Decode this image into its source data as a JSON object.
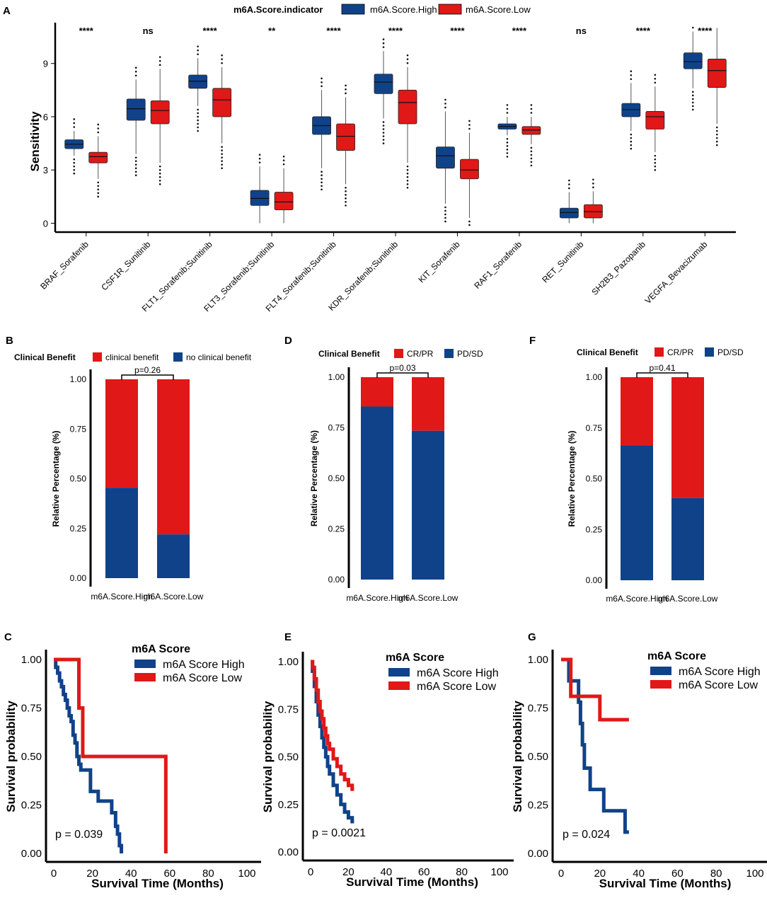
{
  "colors": {
    "high": "#10428a",
    "low": "#e01818",
    "axis": "#000000"
  },
  "chart_data": [
    {
      "panel": "A",
      "type": "box",
      "legend_title": "m6A.Score.indicator",
      "legend": [
        "m6A.Score.High",
        "m6A.Score.Low"
      ],
      "ylabel": "Sensitivity",
      "yticks": [
        0,
        3,
        6,
        9
      ],
      "ylim": [
        -0.5,
        11.3
      ],
      "categories": [
        "BRAF_Sorafenib",
        "CSF1R_Sunitinib",
        "FLT1_Sorafenib;Sunitinib",
        "FLT3_Sorafenib;Sunitinib",
        "FLT4_Sorafenib;Sunitinib",
        "KDR_Sorafenib;Sunitinib",
        "KIT_Sorafenib",
        "RAF1_Sorafenib",
        "RET_Sunitinib",
        "SH2B3_Pazopanib",
        "VEGFA_Bevacizumab"
      ],
      "significance": [
        "****",
        "ns",
        "****",
        "**",
        "****",
        "****",
        "****",
        "****",
        "ns",
        "****",
        "****"
      ],
      "series": [
        {
          "name": "m6A.Score.High",
          "boxes": [
            [
              3.8,
              4.2,
              4.45,
              4.7,
              5.2
            ],
            [
              3.9,
              5.8,
              6.45,
              7.0,
              8.1
            ],
            [
              6.6,
              7.6,
              8.0,
              8.35,
              9.3
            ],
            [
              0.0,
              1.0,
              1.4,
              1.85,
              3.2
            ],
            [
              3.1,
              5.0,
              5.5,
              6.0,
              7.5
            ],
            [
              5.9,
              7.3,
              7.95,
              8.4,
              9.7
            ],
            [
              1.1,
              3.1,
              3.8,
              4.3,
              6.3
            ],
            [
              4.95,
              5.3,
              5.45,
              5.6,
              6.0
            ],
            [
              0.0,
              0.3,
              0.6,
              0.85,
              1.75
            ],
            [
              5.2,
              6.0,
              6.4,
              6.75,
              7.9
            ],
            [
              7.6,
              8.7,
              9.1,
              9.6,
              10.8
            ]
          ]
        },
        {
          "name": "m6A.Score.Low",
          "boxes": [
            [
              2.5,
              3.4,
              3.75,
              4.0,
              4.9
            ],
            [
              3.4,
              5.6,
              6.35,
              6.9,
              8.7
            ],
            [
              4.5,
              6.0,
              6.95,
              7.6,
              8.8
            ],
            [
              0.0,
              0.75,
              1.2,
              1.75,
              3.1
            ],
            [
              2.2,
              4.1,
              4.9,
              5.6,
              7.1
            ],
            [
              3.4,
              5.6,
              6.8,
              7.5,
              8.8
            ],
            [
              0.3,
              2.5,
              3.0,
              3.6,
              5.1
            ],
            [
              4.45,
              5.0,
              5.25,
              5.45,
              6.0
            ],
            [
              0.0,
              0.3,
              0.65,
              1.05,
              1.8
            ],
            [
              4.0,
              5.3,
              6.0,
              6.3,
              7.7
            ],
            [
              5.6,
              7.65,
              8.6,
              9.25,
              11.0
            ]
          ]
        }
      ]
    },
    {
      "panel": "B",
      "type": "stacked_bar",
      "legend_title": "Clinical Benefit",
      "legend": [
        "clinical benefit",
        "no clinical benefit"
      ],
      "ylabel": "Relative Percentage (%)",
      "yticks": [
        "0.00",
        "0.25",
        "0.50",
        "0.75",
        "1.00"
      ],
      "categories": [
        "m6A.Score.High",
        "m6A.Score.Low"
      ],
      "bottom_values": [
        0.455,
        0.22
      ],
      "pvalue": "p=0.26"
    },
    {
      "panel": "D",
      "type": "stacked_bar",
      "legend_title": "Clinical Benefit",
      "legend": [
        "CR/PR",
        "PD/SD"
      ],
      "ylabel": "Relative Percentage (%)",
      "yticks": [
        "0.00",
        "0.25",
        "0.50",
        "0.75",
        "1.00"
      ],
      "categories": [
        "m6A.Score.High",
        "m6A.Score.Low"
      ],
      "bottom_values": [
        0.855,
        0.735
      ],
      "pvalue": "p=0.03"
    },
    {
      "panel": "F",
      "type": "stacked_bar",
      "legend_title": "Clinical Benefit",
      "legend": [
        "CR/PR",
        "PD/SD"
      ],
      "ylabel": "Relative Percentage (%)",
      "yticks": [
        "0.00",
        "0.25",
        "0.50",
        "0.75",
        "1.00"
      ],
      "categories": [
        "m6A.Score.High",
        "m6A.Score.Low"
      ],
      "bottom_values": [
        0.665,
        0.405
      ],
      "pvalue": "p=0.41"
    },
    {
      "panel": "C",
      "type": "km",
      "legend_title": "m6A Score",
      "legend": [
        "m6A Score High",
        "m6A Score Low"
      ],
      "xlabel": "Survival Time (Months)",
      "ylabel": "Survival probability",
      "xticks": [
        0,
        20,
        40,
        60,
        80,
        100
      ],
      "yticks": [
        "0.00",
        "0.25",
        "0.50",
        "0.75",
        "1.00"
      ],
      "pvalue": "p = 0.039",
      "series": [
        {
          "name": "m6A Score High",
          "points": [
            [
              0,
              1.0
            ],
            [
              1,
              0.96
            ],
            [
              2,
              0.93
            ],
            [
              3,
              0.89
            ],
            [
              4,
              0.86
            ],
            [
              5,
              0.82
            ],
            [
              6,
              0.79
            ],
            [
              7,
              0.75
            ],
            [
              8,
              0.71
            ],
            [
              9,
              0.68
            ],
            [
              10,
              0.61
            ],
            [
              11,
              0.57
            ],
            [
              12,
              0.5
            ],
            [
              13,
              0.46
            ],
            [
              14,
              0.43
            ],
            [
              15,
              0.43
            ],
            [
              18,
              0.43
            ],
            [
              19,
              0.32
            ],
            [
              22,
              0.32
            ],
            [
              23,
              0.27
            ],
            [
              28,
              0.27
            ],
            [
              30,
              0.21
            ],
            [
              32,
              0.14
            ],
            [
              33,
              0.1
            ],
            [
              34,
              0.04
            ],
            [
              35,
              0.0
            ]
          ]
        },
        {
          "name": "m6A Score Low",
          "points": [
            [
              0,
              1.0
            ],
            [
              13,
              1.0
            ],
            [
              13,
              0.75
            ],
            [
              14,
              0.75
            ],
            [
              15,
              0.5
            ],
            [
              58,
              0.5
            ],
            [
              58,
              0.0
            ]
          ]
        }
      ]
    },
    {
      "panel": "E",
      "type": "km",
      "legend_title": "m6A Score",
      "legend": [
        "m6A Score High",
        "m6A Score Low"
      ],
      "xlabel": "Survival Time (Months)",
      "ylabel": "Survival probability",
      "xticks": [
        0,
        20,
        40,
        60,
        80,
        100
      ],
      "yticks": [
        "0.00",
        "0.25",
        "0.50",
        "0.75",
        "1.00"
      ],
      "pvalue": "p = 0.0021",
      "series": [
        {
          "name": "m6A Score High",
          "points": [
            [
              0,
              1.0
            ],
            [
              1,
              0.95
            ],
            [
              2,
              0.87
            ],
            [
              3,
              0.79
            ],
            [
              4,
              0.72
            ],
            [
              5,
              0.66
            ],
            [
              6,
              0.6
            ],
            [
              7,
              0.55
            ],
            [
              8,
              0.5
            ],
            [
              9,
              0.45
            ],
            [
              10,
              0.41
            ],
            [
              12,
              0.35
            ],
            [
              14,
              0.3
            ],
            [
              16,
              0.25
            ],
            [
              18,
              0.21
            ],
            [
              20,
              0.18
            ],
            [
              22,
              0.16
            ],
            [
              23,
              0.16
            ]
          ]
        },
        {
          "name": "m6A Score Low",
          "points": [
            [
              0,
              1.0
            ],
            [
              1,
              0.97
            ],
            [
              2,
              0.91
            ],
            [
              3,
              0.85
            ],
            [
              4,
              0.79
            ],
            [
              5,
              0.74
            ],
            [
              6,
              0.7
            ],
            [
              7,
              0.65
            ],
            [
              8,
              0.61
            ],
            [
              9,
              0.57
            ],
            [
              10,
              0.54
            ],
            [
              12,
              0.49
            ],
            [
              14,
              0.45
            ],
            [
              16,
              0.41
            ],
            [
              18,
              0.38
            ],
            [
              20,
              0.35
            ],
            [
              22,
              0.33
            ],
            [
              23,
              0.33
            ]
          ]
        }
      ]
    },
    {
      "panel": "G",
      "type": "km",
      "legend_title": "m6A Score",
      "legend": [
        "m6A Score High",
        "m6A Score Low"
      ],
      "xlabel": "Survival Time (Months)",
      "ylabel": "Survival probability",
      "xticks": [
        0,
        20,
        40,
        60,
        80,
        100
      ],
      "yticks": [
        "0.00",
        "0.25",
        "0.50",
        "0.75",
        "1.00"
      ],
      "pvalue": "p = 0.024",
      "series": [
        {
          "name": "m6A Score High",
          "points": [
            [
              0,
              1.0
            ],
            [
              4,
              1.0
            ],
            [
              4,
              0.89
            ],
            [
              9,
              0.89
            ],
            [
              9,
              0.78
            ],
            [
              10,
              0.78
            ],
            [
              10,
              0.67
            ],
            [
              11,
              0.67
            ],
            [
              11,
              0.56
            ],
            [
              12,
              0.56
            ],
            [
              12,
              0.44
            ],
            [
              15,
              0.44
            ],
            [
              15,
              0.33
            ],
            [
              22,
              0.33
            ],
            [
              22,
              0.22
            ],
            [
              33,
              0.22
            ],
            [
              33,
              0.11
            ],
            [
              35,
              0.11
            ]
          ]
        },
        {
          "name": "m6A Score Low",
          "points": [
            [
              0,
              1.0
            ],
            [
              5,
              1.0
            ],
            [
              5,
              0.81
            ],
            [
              20,
              0.81
            ],
            [
              20,
              0.69
            ],
            [
              35,
              0.69
            ]
          ]
        }
      ]
    }
  ],
  "panel_labels": [
    "A",
    "B",
    "D",
    "F",
    "C",
    "E",
    "G"
  ]
}
